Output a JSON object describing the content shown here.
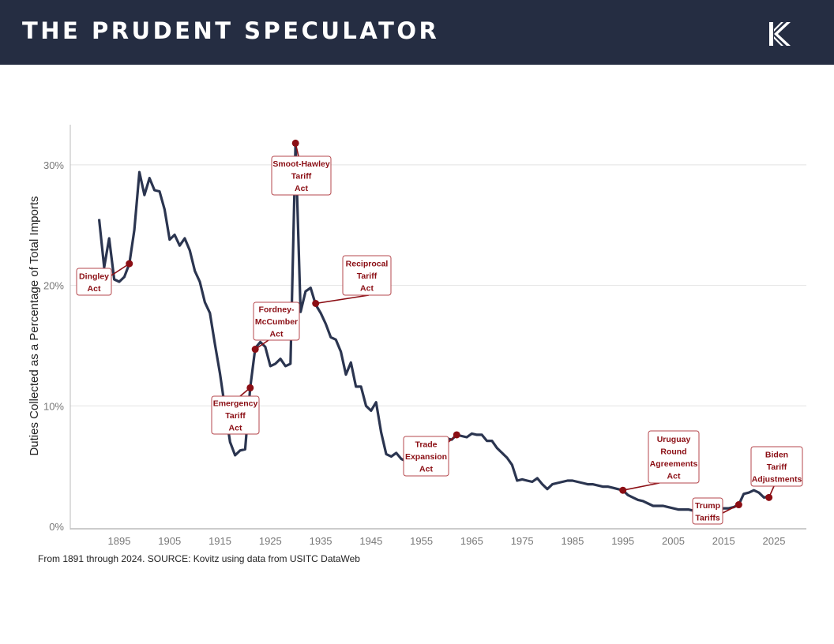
{
  "header": {
    "brand": "THE PRUDENT SPECULATOR",
    "logo_icon": "k-logo-icon"
  },
  "colors": {
    "header_bg": "#252d42",
    "line": "#2b3550",
    "accent": "#8b0e14"
  },
  "chart_data": {
    "type": "line",
    "title": "",
    "xlabel": "",
    "ylabel": "Duties Collected as a Percentage of Total Imports",
    "xlim": [
      1885,
      2031
    ],
    "ylim": [
      0,
      33
    ],
    "x_ticks": [
      "1895",
      "1905",
      "1915",
      "1925",
      "1935",
      "1945",
      "1955",
      "1965",
      "1975",
      "1985",
      "1995",
      "2005",
      "2015",
      "2025"
    ],
    "y_ticks": [
      {
        "value": 0,
        "label": "0%"
      },
      {
        "value": 10,
        "label": "10%"
      },
      {
        "value": 20,
        "label": "20%"
      },
      {
        "value": 30,
        "label": "30%"
      }
    ],
    "grid": "horizontal",
    "series": [
      {
        "name": "Duties / Total Imports (%)",
        "x": [
          1891,
          1892,
          1893,
          1894,
          1895,
          1896,
          1897,
          1898,
          1899,
          1900,
          1901,
          1902,
          1903,
          1904,
          1905,
          1906,
          1907,
          1908,
          1909,
          1910,
          1911,
          1912,
          1913,
          1914,
          1915,
          1916,
          1917,
          1918,
          1919,
          1920,
          1921,
          1922,
          1923,
          1924,
          1925,
          1926,
          1927,
          1928,
          1929,
          1930,
          1931,
          1932,
          1933,
          1934,
          1935,
          1936,
          1937,
          1938,
          1939,
          1940,
          1941,
          1942,
          1943,
          1944,
          1945,
          1946,
          1947,
          1948,
          1949,
          1950,
          1951,
          1952,
          1953,
          1954,
          1955,
          1956,
          1957,
          1958,
          1959,
          1960,
          1961,
          1962,
          1963,
          1964,
          1965,
          1966,
          1967,
          1968,
          1969,
          1970,
          1971,
          1972,
          1973,
          1974,
          1975,
          1976,
          1977,
          1978,
          1979,
          1980,
          1981,
          1982,
          1983,
          1984,
          1985,
          1986,
          1987,
          1988,
          1989,
          1990,
          1991,
          1992,
          1993,
          1994,
          1995,
          1996,
          1997,
          1998,
          1999,
          2000,
          2001,
          2002,
          2003,
          2004,
          2005,
          2006,
          2007,
          2008,
          2009,
          2010,
          2011,
          2012,
          2013,
          2014,
          2015,
          2016,
          2017,
          2018,
          2019,
          2020,
          2021,
          2022,
          2023,
          2024
        ],
        "y": [
          25.5,
          21.5,
          23.9,
          20.5,
          20.3,
          20.7,
          21.8,
          24.6,
          29.4,
          27.5,
          28.9,
          27.9,
          27.8,
          26.3,
          23.8,
          24.2,
          23.3,
          23.9,
          22.9,
          21.2,
          20.3,
          18.6,
          17.7,
          15.1,
          12.7,
          9.8,
          7.0,
          5.9,
          6.3,
          6.4,
          11.5,
          14.8,
          15.3,
          14.9,
          13.3,
          13.5,
          13.9,
          13.3,
          13.5,
          31.8,
          17.8,
          19.5,
          19.8,
          18.4,
          17.7,
          16.8,
          15.7,
          15.5,
          14.5,
          12.6,
          13.6,
          11.6,
          11.6,
          10.0,
          9.6,
          10.3,
          7.8,
          6.0,
          5.8,
          6.1,
          5.6,
          5.4,
          5.6,
          5.6,
          5.9,
          6.3,
          6.5,
          6.6,
          7.0,
          7.3,
          7.2,
          7.6,
          7.5,
          7.4,
          7.7,
          7.6,
          7.6,
          7.1,
          7.1,
          6.5,
          6.1,
          5.7,
          5.1,
          3.8,
          3.9,
          3.8,
          3.7,
          4.0,
          3.5,
          3.1,
          3.5,
          3.6,
          3.7,
          3.8,
          3.8,
          3.7,
          3.6,
          3.5,
          3.5,
          3.4,
          3.3,
          3.3,
          3.2,
          3.1,
          3.0,
          2.6,
          2.4,
          2.2,
          2.1,
          1.9,
          1.7,
          1.7,
          1.7,
          1.6,
          1.5,
          1.4,
          1.4,
          1.4,
          1.3,
          1.4,
          1.4,
          1.4,
          1.4,
          1.4,
          1.5,
          1.5,
          1.6,
          1.8,
          2.7,
          2.8,
          3.0,
          2.8,
          2.4,
          2.5
        ]
      }
    ],
    "annotations": [
      {
        "lines": [
          "Dingley",
          "Act"
        ],
        "year": 1897,
        "value": 21.8
      },
      {
        "lines": [
          "Emergency",
          "Tariff",
          "Act"
        ],
        "year": 1921,
        "value": 11.5
      },
      {
        "lines": [
          "Fordney-",
          "McCumber",
          "Act"
        ],
        "year": 1922,
        "value": 14.7
      },
      {
        "lines": [
          "Smoot-Hawley",
          "Tariff",
          "Act"
        ],
        "year": 1930,
        "value": 31.8
      },
      {
        "lines": [
          "Reciprocal",
          "Tariff",
          "Act"
        ],
        "year": 1934,
        "value": 18.5
      },
      {
        "lines": [
          "Trade",
          "Expansion",
          "Act"
        ],
        "year": 1962,
        "value": 7.6
      },
      {
        "lines": [
          "Uruguay",
          "Round",
          "Agreements",
          "Act"
        ],
        "year": 1995,
        "value": 3.0
      },
      {
        "lines": [
          "Trump",
          "Tariffs"
        ],
        "year": 2018,
        "value": 1.8
      },
      {
        "lines": [
          "Biden",
          "Tariff",
          "Adjustments"
        ],
        "year": 2024,
        "value": 2.4
      }
    ],
    "source": "From 1891 through 2024. SOURCE: Kovitz using data from USITC DataWeb"
  }
}
